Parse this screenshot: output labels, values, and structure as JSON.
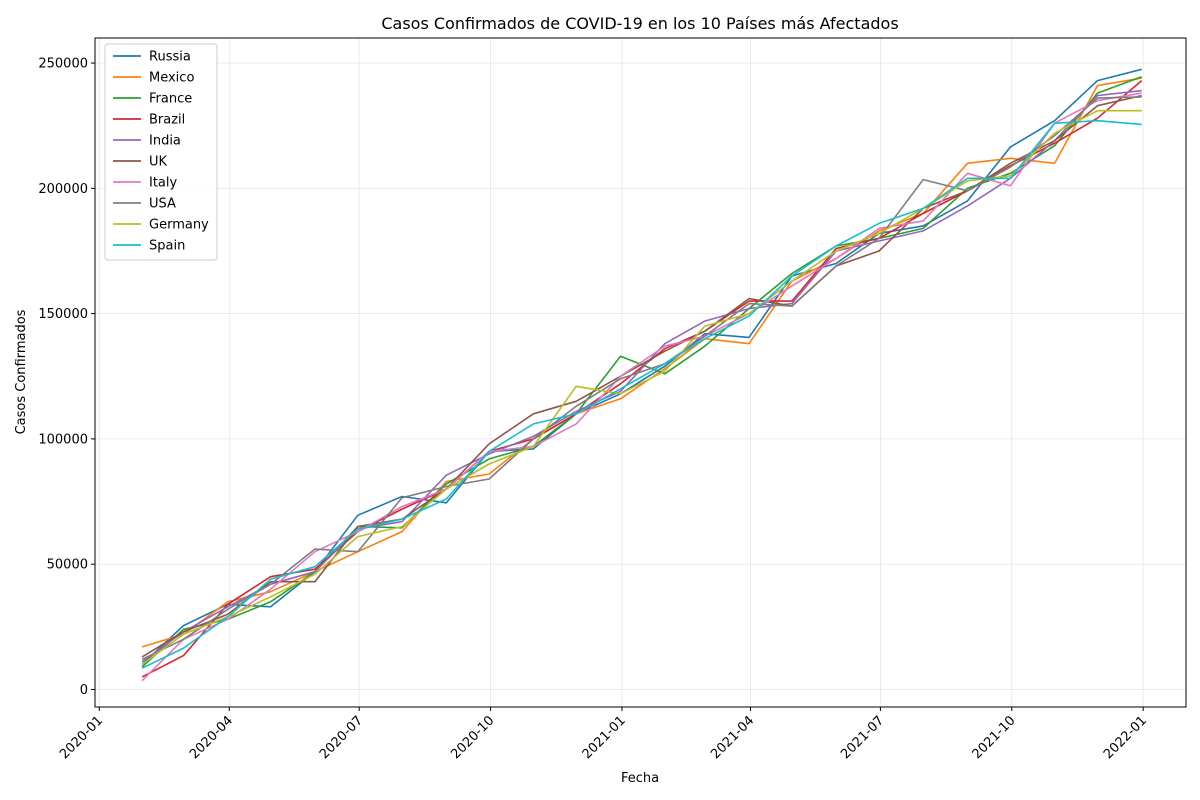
{
  "chart_data": {
    "type": "line",
    "title": "Casos Confirmados de COVID-19 en los 10 Países más Afectados",
    "xlabel": "Fecha",
    "ylabel": "Casos Confirmados",
    "xlim": [
      "2019-12-29",
      "2022-01-31"
    ],
    "ylim": [
      -7000,
      260000
    ],
    "x_ticks": [
      "2020-01",
      "2020-04",
      "2020-07",
      "2020-10",
      "2021-01",
      "2021-04",
      "2021-07",
      "2021-10",
      "2022-01"
    ],
    "y_ticks": [
      0,
      50000,
      100000,
      150000,
      200000,
      250000
    ],
    "grid": true,
    "legend_position": "top-left",
    "x": [
      "2020-01-31",
      "2020-02-29",
      "2020-03-31",
      "2020-04-30",
      "2020-05-31",
      "2020-06-30",
      "2020-07-31",
      "2020-08-31",
      "2020-09-30",
      "2020-10-31",
      "2020-11-30",
      "2020-12-31",
      "2021-01-31",
      "2021-02-28",
      "2021-03-31",
      "2021-04-30",
      "2021-05-31",
      "2021-06-30",
      "2021-07-31",
      "2021-08-31",
      "2021-09-30",
      "2021-10-31",
      "2021-11-30",
      "2021-12-31"
    ],
    "series": [
      {
        "name": "Russia",
        "color": "#1f77b4",
        "values": [
          10000,
          25500,
          34000,
          33000,
          47000,
          69500,
          77000,
          74500,
          95000,
          96000,
          110000,
          118000,
          129000,
          142000,
          140500,
          165000,
          170000,
          182000,
          185000,
          195000,
          216500,
          227000,
          243000,
          247500
        ]
      },
      {
        "name": "Mexico",
        "color": "#ff7f0e",
        "values": [
          17000,
          22000,
          35000,
          39000,
          47000,
          55000,
          63000,
          83000,
          86000,
          100000,
          110000,
          116000,
          128000,
          140000,
          138000,
          163000,
          172000,
          183000,
          190000,
          210000,
          212000,
          210000,
          241000,
          244000
        ]
      },
      {
        "name": "France",
        "color": "#2ca02c",
        "values": [
          9000,
          24000,
          28000,
          35000,
          47000,
          65000,
          64500,
          82000,
          92000,
          97000,
          110000,
          133000,
          126000,
          137000,
          152000,
          166000,
          177000,
          180000,
          184000,
          200000,
          206000,
          217000,
          238000,
          244500
        ]
      },
      {
        "name": "Brazil",
        "color": "#d62728",
        "values": [
          5000,
          13500,
          34000,
          45000,
          48000,
          63000,
          72000,
          80000,
          95000,
          100000,
          110000,
          122000,
          136000,
          143000,
          155000,
          155000,
          176000,
          180000,
          190000,
          199000,
          209000,
          218000,
          228000,
          243000
        ]
      },
      {
        "name": "India",
        "color": "#9467bd",
        "values": [
          11000,
          23000,
          33000,
          42000,
          47000,
          64000,
          67000,
          85500,
          94000,
          101000,
          111000,
          119000,
          138000,
          147000,
          152000,
          154000,
          175000,
          179000,
          183000,
          193000,
          204000,
          219000,
          237000,
          239000
        ]
      },
      {
        "name": "UK",
        "color": "#8c564b",
        "values": [
          13000,
          23000,
          30000,
          43000,
          43000,
          65000,
          68000,
          80000,
          98000,
          110000,
          115000,
          125000,
          135000,
          143000,
          156000,
          153000,
          169000,
          175000,
          192000,
          199000,
          210000,
          219000,
          233000,
          237000
        ]
      },
      {
        "name": "Italy",
        "color": "#e377c2",
        "values": [
          3500,
          20000,
          28000,
          40000,
          55000,
          63000,
          73000,
          80000,
          95000,
          97000,
          106000,
          125000,
          137000,
          141000,
          150000,
          161000,
          172000,
          184000,
          187000,
          206000,
          201000,
          226000,
          235000,
          238000
        ]
      },
      {
        "name": "USA",
        "color": "#7f7f7f",
        "values": [
          12000,
          20000,
          32000,
          42000,
          56000,
          55000,
          76500,
          81000,
          84000,
          100000,
          113000,
          124000,
          130000,
          141000,
          154000,
          153000,
          169000,
          180000,
          203500,
          199000,
          208500,
          221000,
          236000,
          236500
        ]
      },
      {
        "name": "Germany",
        "color": "#bcbd22",
        "values": [
          10000,
          22000,
          29000,
          37000,
          46000,
          61000,
          65000,
          80000,
          90000,
          97000,
          121000,
          118000,
          127000,
          145000,
          150000,
          163000,
          175000,
          182000,
          192000,
          203000,
          205000,
          222000,
          231000,
          231000
        ]
      },
      {
        "name": "Spain",
        "color": "#17becf",
        "values": [
          8500,
          16500,
          29000,
          44000,
          49000,
          64000,
          68000,
          76000,
          95000,
          106000,
          110000,
          120000,
          130000,
          140000,
          149000,
          165000,
          177000,
          186000,
          192000,
          204000,
          204000,
          226000,
          227000,
          225500
        ]
      }
    ]
  }
}
